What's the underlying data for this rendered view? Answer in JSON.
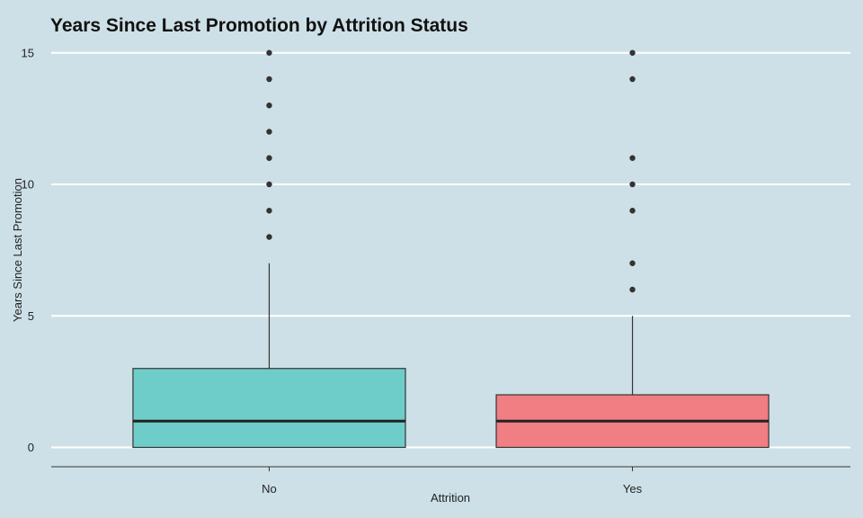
{
  "chart_data": {
    "type": "boxplot",
    "title": "Years Since Last Promotion by Attrition Status",
    "xlabel": "Attrition",
    "ylabel": "Years Since Last Promotion",
    "categories": [
      "No",
      "Yes"
    ],
    "ylim": [
      -0.7,
      15.5
    ],
    "yticks": [
      0,
      5,
      10,
      15
    ],
    "grid": "horizontal-major",
    "legend": "none",
    "boxes": [
      {
        "category": "No",
        "q1": 0,
        "median": 1,
        "q3": 3,
        "whisker_low": 0,
        "whisker_high": 7,
        "outliers": [
          8,
          9,
          10,
          11,
          12,
          13,
          14,
          15
        ],
        "color": "#6ecdc8"
      },
      {
        "category": "Yes",
        "q1": 0,
        "median": 1,
        "q3": 2,
        "whisker_low": 0,
        "whisker_high": 5,
        "outliers": [
          6,
          7,
          9,
          10,
          11,
          14,
          15
        ],
        "color": "#f07e82"
      }
    ],
    "colors": {
      "background": "#cde0e7",
      "grid": "#ffffff",
      "outline": "#333333",
      "outlier": "#333333"
    }
  }
}
